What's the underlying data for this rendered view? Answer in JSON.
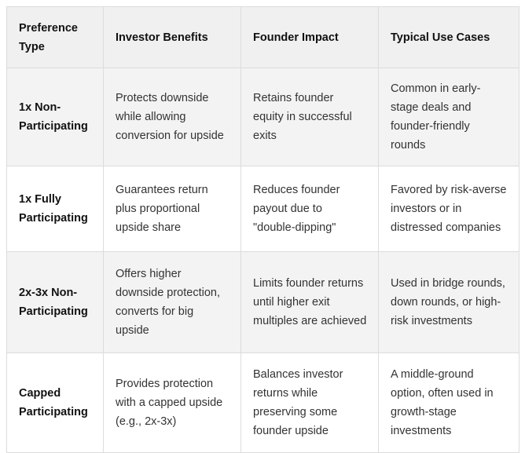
{
  "colors": {
    "header_bg": "#f0f0f0",
    "alt_row_bg": "#f3f3f3",
    "border": "#dcdcdc",
    "header_text": "#111111",
    "body_text": "#333333"
  },
  "table": {
    "headers": {
      "preference_type": "Preference Type",
      "investor_benefits": "Investor Benefits",
      "founder_impact": "Founder Impact",
      "typical_use_cases": "Typical Use Cases"
    },
    "rows": [
      {
        "preference_type": "1x Non-Participating",
        "investor_benefits": "Protects downside while allowing conversion for upside",
        "founder_impact": "Retains founder equity in successful exits",
        "typical_use_cases": "Common in early-stage deals and founder-friendly rounds"
      },
      {
        "preference_type": "1x Fully Participating",
        "investor_benefits": "Guarantees return plus proportional upside share",
        "founder_impact": "Reduces founder payout due to \"double-dipping\"",
        "typical_use_cases": "Favored by risk-averse investors or in distressed companies"
      },
      {
        "preference_type": "2x-3x Non-Participating",
        "investor_benefits": "Offers higher downside protection, converts for big upside",
        "founder_impact": "Limits founder returns until higher exit multiples are achieved",
        "typical_use_cases": "Used in bridge rounds, down rounds, or high-risk investments"
      },
      {
        "preference_type": "Capped Participating",
        "investor_benefits": "Provides protection with a capped upside (e.g., 2x-3x)",
        "founder_impact": "Balances investor returns while preserving some founder upside",
        "typical_use_cases": "A middle-ground option, often used in growth-stage investments"
      }
    ]
  }
}
